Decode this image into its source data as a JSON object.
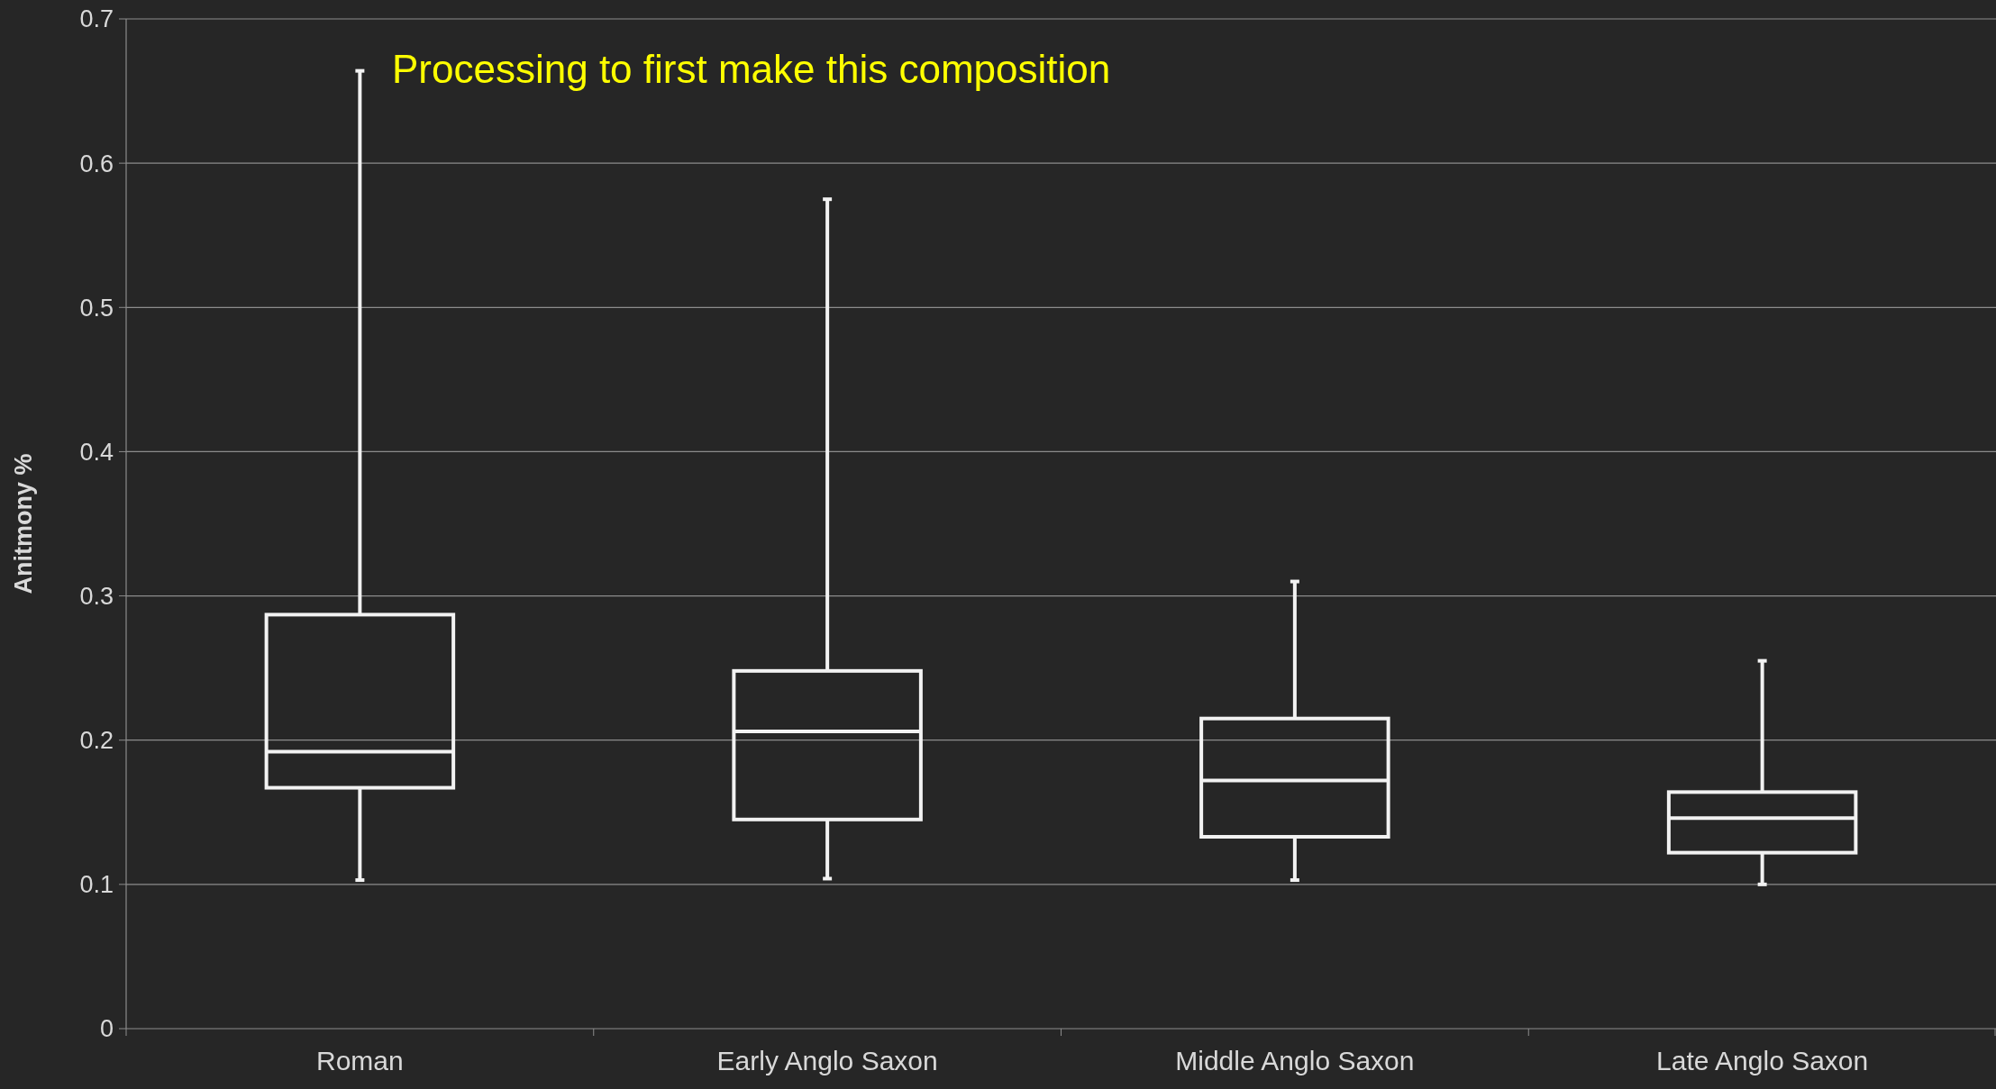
{
  "chart_data": {
    "type": "box",
    "ylabel": "Anitmony %",
    "annotations": [
      "Processing to first make this composition"
    ],
    "categories": [
      "Roman",
      "Early Anglo Saxon",
      "Middle Anglo Saxon",
      "Late Anglo Saxon"
    ],
    "boxes": [
      {
        "low": 0.103,
        "q1": 0.167,
        "median": 0.192,
        "q3": 0.287,
        "high": 0.664
      },
      {
        "low": 0.104,
        "q1": 0.145,
        "median": 0.206,
        "q3": 0.248,
        "high": 0.575
      },
      {
        "low": 0.103,
        "q1": 0.133,
        "median": 0.172,
        "q3": 0.215,
        "high": 0.31
      },
      {
        "low": 0.1,
        "q1": 0.122,
        "median": 0.146,
        "q3": 0.164,
        "high": 0.255
      }
    ],
    "color": "#f2f2f2",
    "ylim": [
      0,
      0.7
    ],
    "yticks": [
      0,
      0.1,
      0.2,
      0.3,
      0.4,
      0.5,
      0.6,
      0.7
    ],
    "grid": "y"
  }
}
